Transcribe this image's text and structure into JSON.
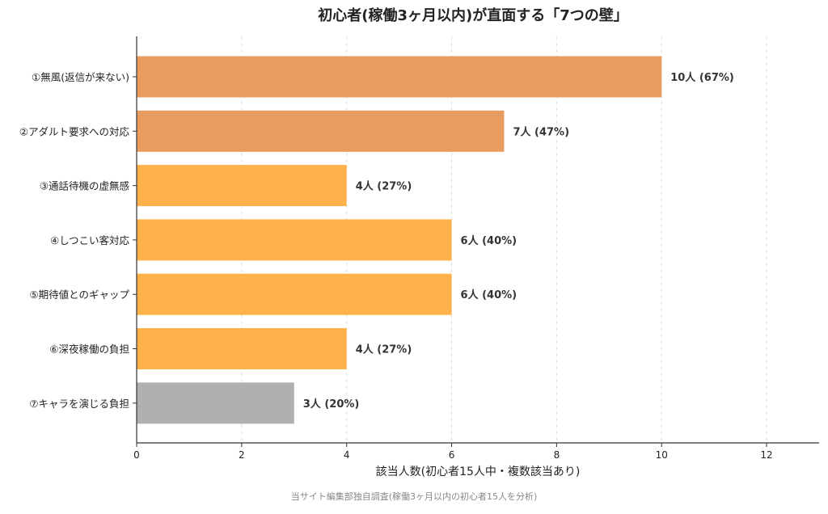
{
  "chart_data": {
    "type": "bar",
    "orientation": "horizontal",
    "title": "初心者(稼働3ヶ月以内)が直面する「7つの壁」",
    "xlabel": "該当人数(初心者15人中・複数該当あり)",
    "ylabel": "",
    "source_note": "当サイト編集部独自調査(稼働3ヶ月以内の初心者15人を分析)",
    "xlim": [
      0,
      13
    ],
    "xticks": [
      0,
      2,
      4,
      6,
      8,
      10,
      12
    ],
    "xtick_labels": [
      "0",
      "2",
      "4",
      "6",
      "8",
      "10",
      "12"
    ],
    "grid": "x, dashed",
    "categories": [
      "①無風(返信が来ない)",
      "②アダルト要求への対応",
      "③通話待機の虚無感",
      "④しつこい客対応",
      "⑤期待値とのギャップ",
      "⑥深夜稼働の負担",
      "⑦キャラを演じる負担"
    ],
    "values": [
      10,
      7,
      4,
      6,
      6,
      4,
      3
    ],
    "data_labels": [
      "10人 (67%)",
      "7人 (47%)",
      "4人 (27%)",
      "6人 (40%)",
      "6人 (40%)",
      "4人 (27%)",
      "3人 (20%)"
    ],
    "bar_colors": [
      "#e89c5f",
      "#e89c5f",
      "#ffb14a",
      "#ffb14a",
      "#ffb14a",
      "#ffb14a",
      "#b0b0b0"
    ]
  }
}
